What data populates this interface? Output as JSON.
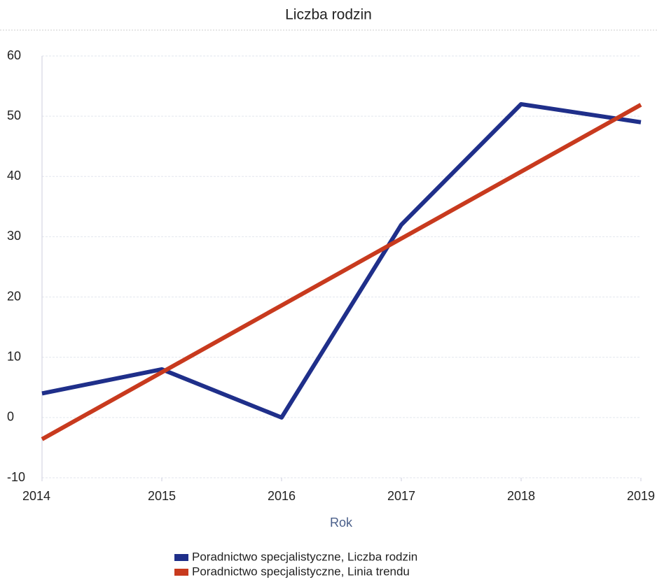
{
  "chart_data": {
    "type": "line",
    "title": "Liczba rodzin",
    "x_label": "Rok",
    "x": [
      2014,
      2015,
      2016,
      2017,
      2018,
      2019
    ],
    "series": [
      {
        "name": "Poradnictwo specjalistyczne, Liczba rodzin",
        "color": "#1f2f8a",
        "values": [
          4,
          8,
          0,
          32,
          52,
          49
        ]
      },
      {
        "name": "Poradnictwo specjalistyczne, Linia trendu",
        "color": "#c83a1e",
        "values": [
          -3.6,
          7.5,
          18.6,
          29.7,
          40.8,
          51.9
        ]
      }
    ],
    "xlim": [
      2014,
      2019
    ],
    "xticks": [
      2014,
      2015,
      2016,
      2017,
      2018,
      2019
    ],
    "ylim": [
      -10,
      60
    ],
    "yticks": [
      -10,
      0,
      10,
      20,
      30,
      40,
      50,
      60
    ],
    "grid": true
  }
}
